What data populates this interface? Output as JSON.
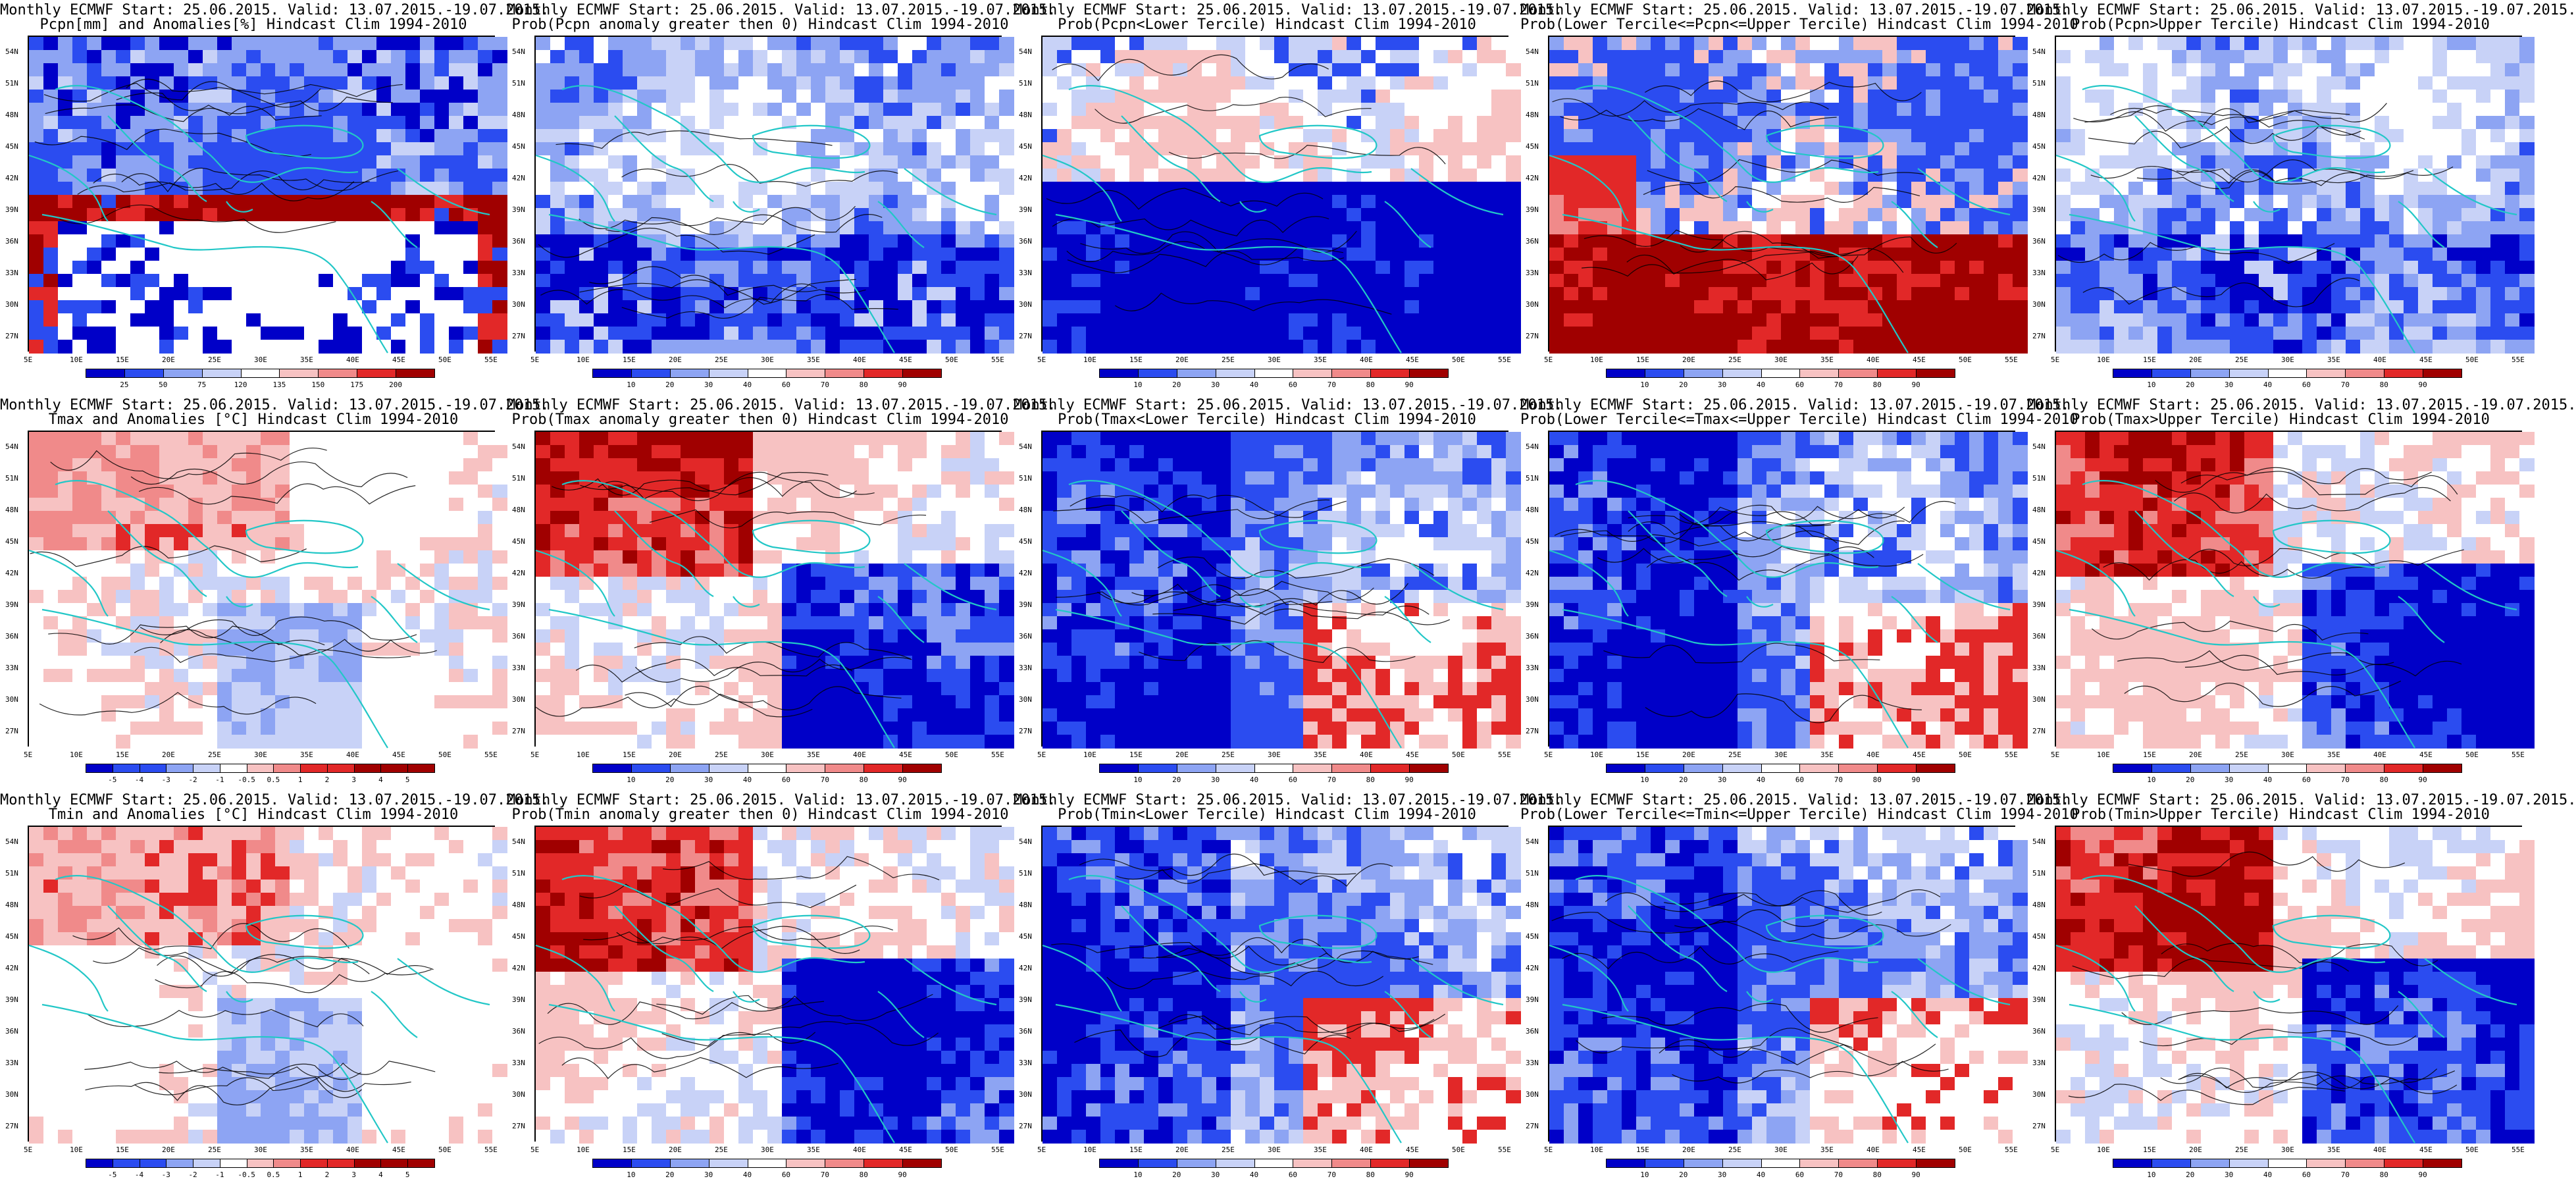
{
  "panels": [
    {
      "title_line1": "Monthly ECMWF Start: 25.06.2015. Valid: 13.07.2015.-19.07.2015.",
      "title_line2": "Pcpn[mm] and Anomalies[%] Hindcast Clim 1994-2010",
      "scheme": "precip",
      "colorbar_ticks": [
        "25",
        "50",
        "75",
        "120",
        "135",
        "150",
        "175",
        "200"
      ]
    },
    {
      "title_line1": "Monthly ECMWF Start: 25.06.2015. Valid: 13.07.2015.-19.07.2015.",
      "title_line2": "Prob(Pcpn anomaly greater then 0) Hindcast Clim 1994-2010",
      "scheme": "prob_blue",
      "colorbar_ticks": [
        "10",
        "20",
        "30",
        "40",
        "60",
        "70",
        "80",
        "90"
      ]
    },
    {
      "title_line1": "Monthly ECMWF Start: 25.06.2015. Valid: 13.07.2015.-19.07.2015.",
      "title_line2": "Prob(Pcpn<Lower Tercile) Hindcast Clim 1994-2010",
      "scheme": "prob_mixed",
      "colorbar_ticks": [
        "10",
        "20",
        "30",
        "40",
        "60",
        "70",
        "80",
        "90"
      ]
    },
    {
      "title_line1": "Monthly ECMWF Start: 25.06.2015. Valid: 13.07.2015.-19.07.2015.",
      "title_line2": "Prob(Lower Tercile<=Pcpn<=Upper Tercile) Hindcast Clim 1994-2010",
      "scheme": "prob_red_south",
      "colorbar_ticks": [
        "10",
        "20",
        "30",
        "40",
        "60",
        "70",
        "80",
        "90"
      ]
    },
    {
      "title_line1": "Monthly ECMWF Start: 25.06.2015. Valid: 13.07.2015.-19.07.2015.",
      "title_line2": "Prob(Pcpn>Upper Tercile) Hindcast Clim 1994-2010",
      "scheme": "prob_blue",
      "colorbar_ticks": [
        "10",
        "20",
        "30",
        "40",
        "60",
        "70",
        "80",
        "90"
      ]
    },
    {
      "title_line1": "Monthly ECMWF Start: 25.06.2015. Valid: 13.07.2015.-19.07.2015.",
      "title_line2": "Tmax and Anomalies [°C] Hindcast Clim 1994-2010",
      "scheme": "temp_anom",
      "colorbar_ticks": [
        "-5",
        "-4",
        "-3",
        "-2",
        "-1",
        "-0.5",
        "0.5",
        "1",
        "2",
        "3",
        "4",
        "5"
      ]
    },
    {
      "title_line1": "Monthly ECMWF Start: 25.06.2015. Valid: 13.07.2015.-19.07.2015.",
      "title_line2": "Prob(Tmax anomaly greater then 0) Hindcast Clim 1994-2010",
      "scheme": "prob_red_nw",
      "colorbar_ticks": [
        "10",
        "20",
        "30",
        "40",
        "60",
        "70",
        "80",
        "90"
      ]
    },
    {
      "title_line1": "Monthly ECMWF Start: 25.06.2015. Valid: 13.07.2015.-19.07.2015.",
      "title_line2": "Prob(Tmax<Lower Tercile) Hindcast Clim 1994-2010",
      "scheme": "prob_blue_west",
      "colorbar_ticks": [
        "10",
        "20",
        "30",
        "40",
        "60",
        "70",
        "80",
        "90"
      ]
    },
    {
      "title_line1": "Monthly ECMWF Start: 25.06.2015. Valid: 13.07.2015.-19.07.2015.",
      "title_line2": "Prob(Lower Tercile<=Tmax<=Upper Tercile) Hindcast Clim 1994-2010",
      "scheme": "prob_blue_west",
      "colorbar_ticks": [
        "10",
        "20",
        "30",
        "40",
        "60",
        "70",
        "80",
        "90"
      ]
    },
    {
      "title_line1": "Monthly ECMWF Start: 25.06.2015. Valid: 13.07.2015.-19.07.2015.",
      "title_line2": "Prob(Tmax>Upper Tercile) Hindcast Clim 1994-2010",
      "scheme": "prob_red_nw",
      "colorbar_ticks": [
        "10",
        "20",
        "30",
        "40",
        "60",
        "70",
        "80",
        "90"
      ]
    },
    {
      "title_line1": "Monthly ECMWF Start: 25.06.2015. Valid: 13.07.2015.-19.07.2015.",
      "title_line2": "Tmin and Anomalies [°C] Hindcast Clim 1994-2010",
      "scheme": "temp_anom",
      "colorbar_ticks": [
        "-5",
        "-4",
        "-3",
        "-2",
        "-1",
        "-0.5",
        "0.5",
        "1",
        "2",
        "3",
        "4",
        "5"
      ]
    },
    {
      "title_line1": "Monthly ECMWF Start: 25.06.2015. Valid: 13.07.2015.-19.07.2015.",
      "title_line2": "Prob(Tmin anomaly greater then 0) Hindcast Clim 1994-2010",
      "scheme": "prob_red_nw",
      "colorbar_ticks": [
        "10",
        "20",
        "30",
        "40",
        "60",
        "70",
        "80",
        "90"
      ]
    },
    {
      "title_line1": "Monthly ECMWF Start: 25.06.2015. Valid: 13.07.2015.-19.07.2015.",
      "title_line2": "Prob(Tmin<Lower Tercile) Hindcast Clim 1994-2010",
      "scheme": "prob_blue_west",
      "colorbar_ticks": [
        "10",
        "20",
        "30",
        "40",
        "60",
        "70",
        "80",
        "90"
      ]
    },
    {
      "title_line1": "Monthly ECMWF Start: 25.06.2015. Valid: 13.07.2015.-19.07.2015.",
      "title_line2": "Prob(Lower Tercile<=Tmin<=Upper Tercile) Hindcast Clim 1994-2010",
      "scheme": "prob_blue_west",
      "colorbar_ticks": [
        "10",
        "20",
        "30",
        "40",
        "60",
        "70",
        "80",
        "90"
      ]
    },
    {
      "title_line1": "Monthly ECMWF Start: 25.06.2015. Valid: 13.07.2015.-19.07.2015.",
      "title_line2": "Prob(Tmin>Upper Tercile) Hindcast Clim 1994-2010",
      "scheme": "prob_red_nw",
      "colorbar_ticks": [
        "10",
        "20",
        "30",
        "40",
        "60",
        "70",
        "80",
        "90"
      ]
    }
  ],
  "lat_labels": [
    "54N",
    "51N",
    "48N",
    "45N",
    "42N",
    "39N",
    "36N",
    "33N",
    "30N",
    "27N"
  ],
  "lon_labels": [
    "5E",
    "10E",
    "15E",
    "20E",
    "25E",
    "30E",
    "35E",
    "40E",
    "45E",
    "50E",
    "55E"
  ],
  "colors": {
    "deep_blue": "#0000c8",
    "blue": "#2b4cf0",
    "light_blue": "#8da4f3",
    "pale_blue": "#c8d2f7",
    "white": "#ffffff",
    "pale_red": "#f7c2c2",
    "light_red": "#f08a8a",
    "red": "#e22828",
    "dark_red": "#a00000",
    "coast": "#22c7c7"
  }
}
